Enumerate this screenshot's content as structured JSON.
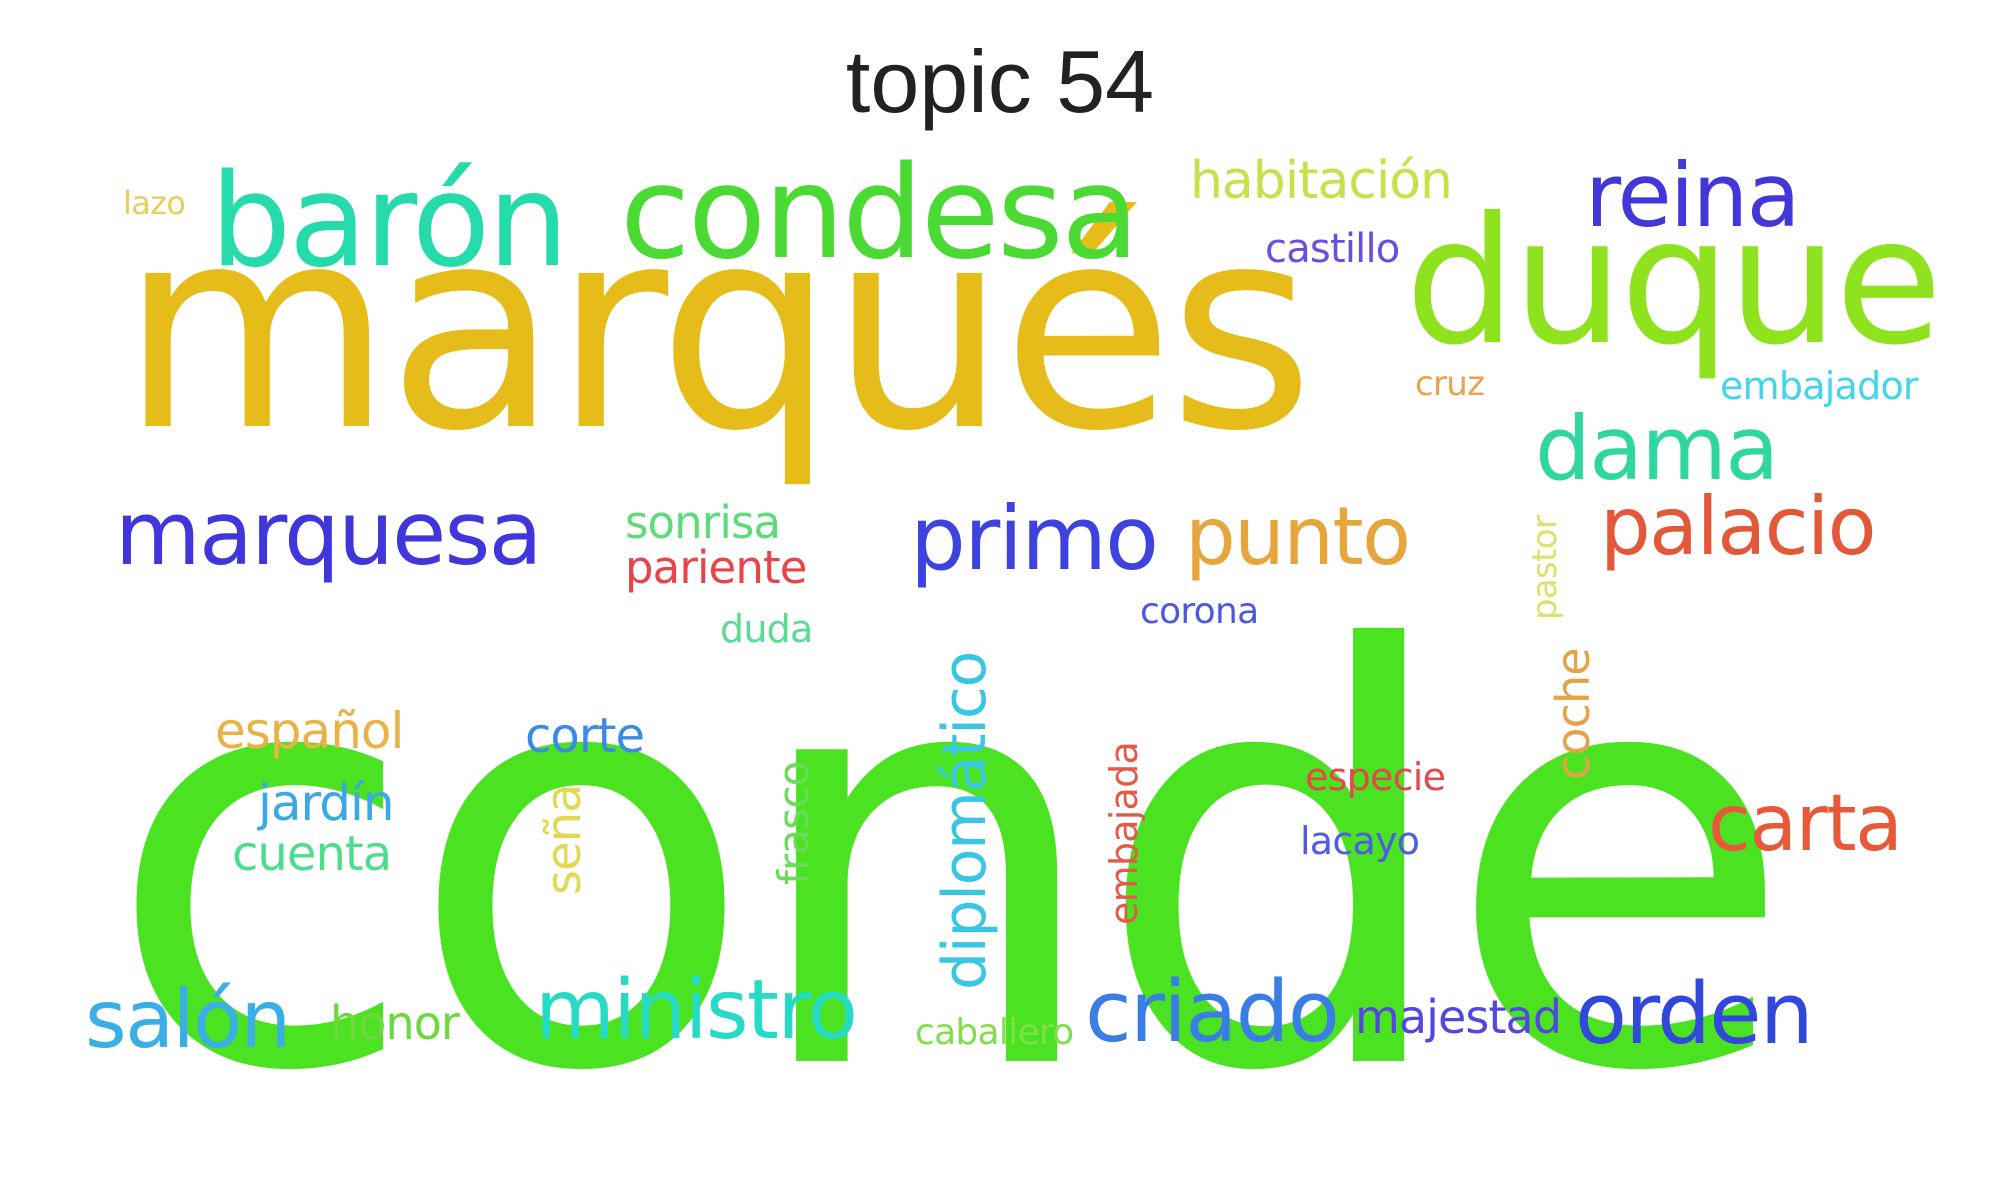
{
  "title": "topic 54",
  "words": [
    {
      "text": "conde",
      "color": "#4be221"
    },
    {
      "text": "marqués",
      "color": "#e6bc1b"
    },
    {
      "text": "condesa",
      "color": "#4bd934"
    },
    {
      "text": "barón",
      "color": "#25dbab"
    },
    {
      "text": "duque",
      "color": "#8fe21e"
    },
    {
      "text": "reina",
      "color": "#4337da"
    },
    {
      "text": "dama",
      "color": "#2fd79e"
    },
    {
      "text": "marquesa",
      "color": "#4136dc"
    },
    {
      "text": "primo",
      "color": "#3e43e0"
    },
    {
      "text": "punto",
      "color": "#e7a63b"
    },
    {
      "text": "palacio",
      "color": "#e4583a"
    },
    {
      "text": "carta",
      "color": "#e8593a"
    },
    {
      "text": "ministro",
      "color": "#26dbc6"
    },
    {
      "text": "criado",
      "color": "#3a7de5"
    },
    {
      "text": "orden",
      "color": "#3247dc"
    },
    {
      "text": "salón",
      "color": "#3aaee6"
    },
    {
      "text": "habitación",
      "color": "#c9e04a"
    },
    {
      "text": "castillo",
      "color": "#6b4ee1"
    },
    {
      "text": "lazo",
      "color": "#e6d059"
    },
    {
      "text": "cruz",
      "color": "#e8a352"
    },
    {
      "text": "embajador",
      "color": "#41d6ea"
    },
    {
      "text": "sonrisa",
      "color": "#5cdb7a"
    },
    {
      "text": "pariente",
      "color": "#e6464a"
    },
    {
      "text": "duda",
      "color": "#5cdc92"
    },
    {
      "text": "corona",
      "color": "#4b58e0"
    },
    {
      "text": "pastor",
      "color": "#dbe26a"
    },
    {
      "text": "español",
      "color": "#e8b346"
    },
    {
      "text": "corte",
      "color": "#3c8ae4"
    },
    {
      "text": "jardín",
      "color": "#39a8e4"
    },
    {
      "text": "cuenta",
      "color": "#4ddd8e"
    },
    {
      "text": "honor",
      "color": "#6dd840"
    },
    {
      "text": "caballero",
      "color": "#7fe04c"
    },
    {
      "text": "majestad",
      "color": "#5447e0"
    },
    {
      "text": "especie",
      "color": "#e5484a"
    },
    {
      "text": "lacayo",
      "color": "#4f5de2"
    },
    {
      "text": "coche",
      "color": "#e6a246"
    },
    {
      "text": "diplomático",
      "color": "#39c6e4"
    },
    {
      "text": "frasco",
      "color": "#6bdc58"
    },
    {
      "text": "seña",
      "color": "#e2d853"
    },
    {
      "text": "embajada",
      "color": "#e45a48"
    }
  ]
}
